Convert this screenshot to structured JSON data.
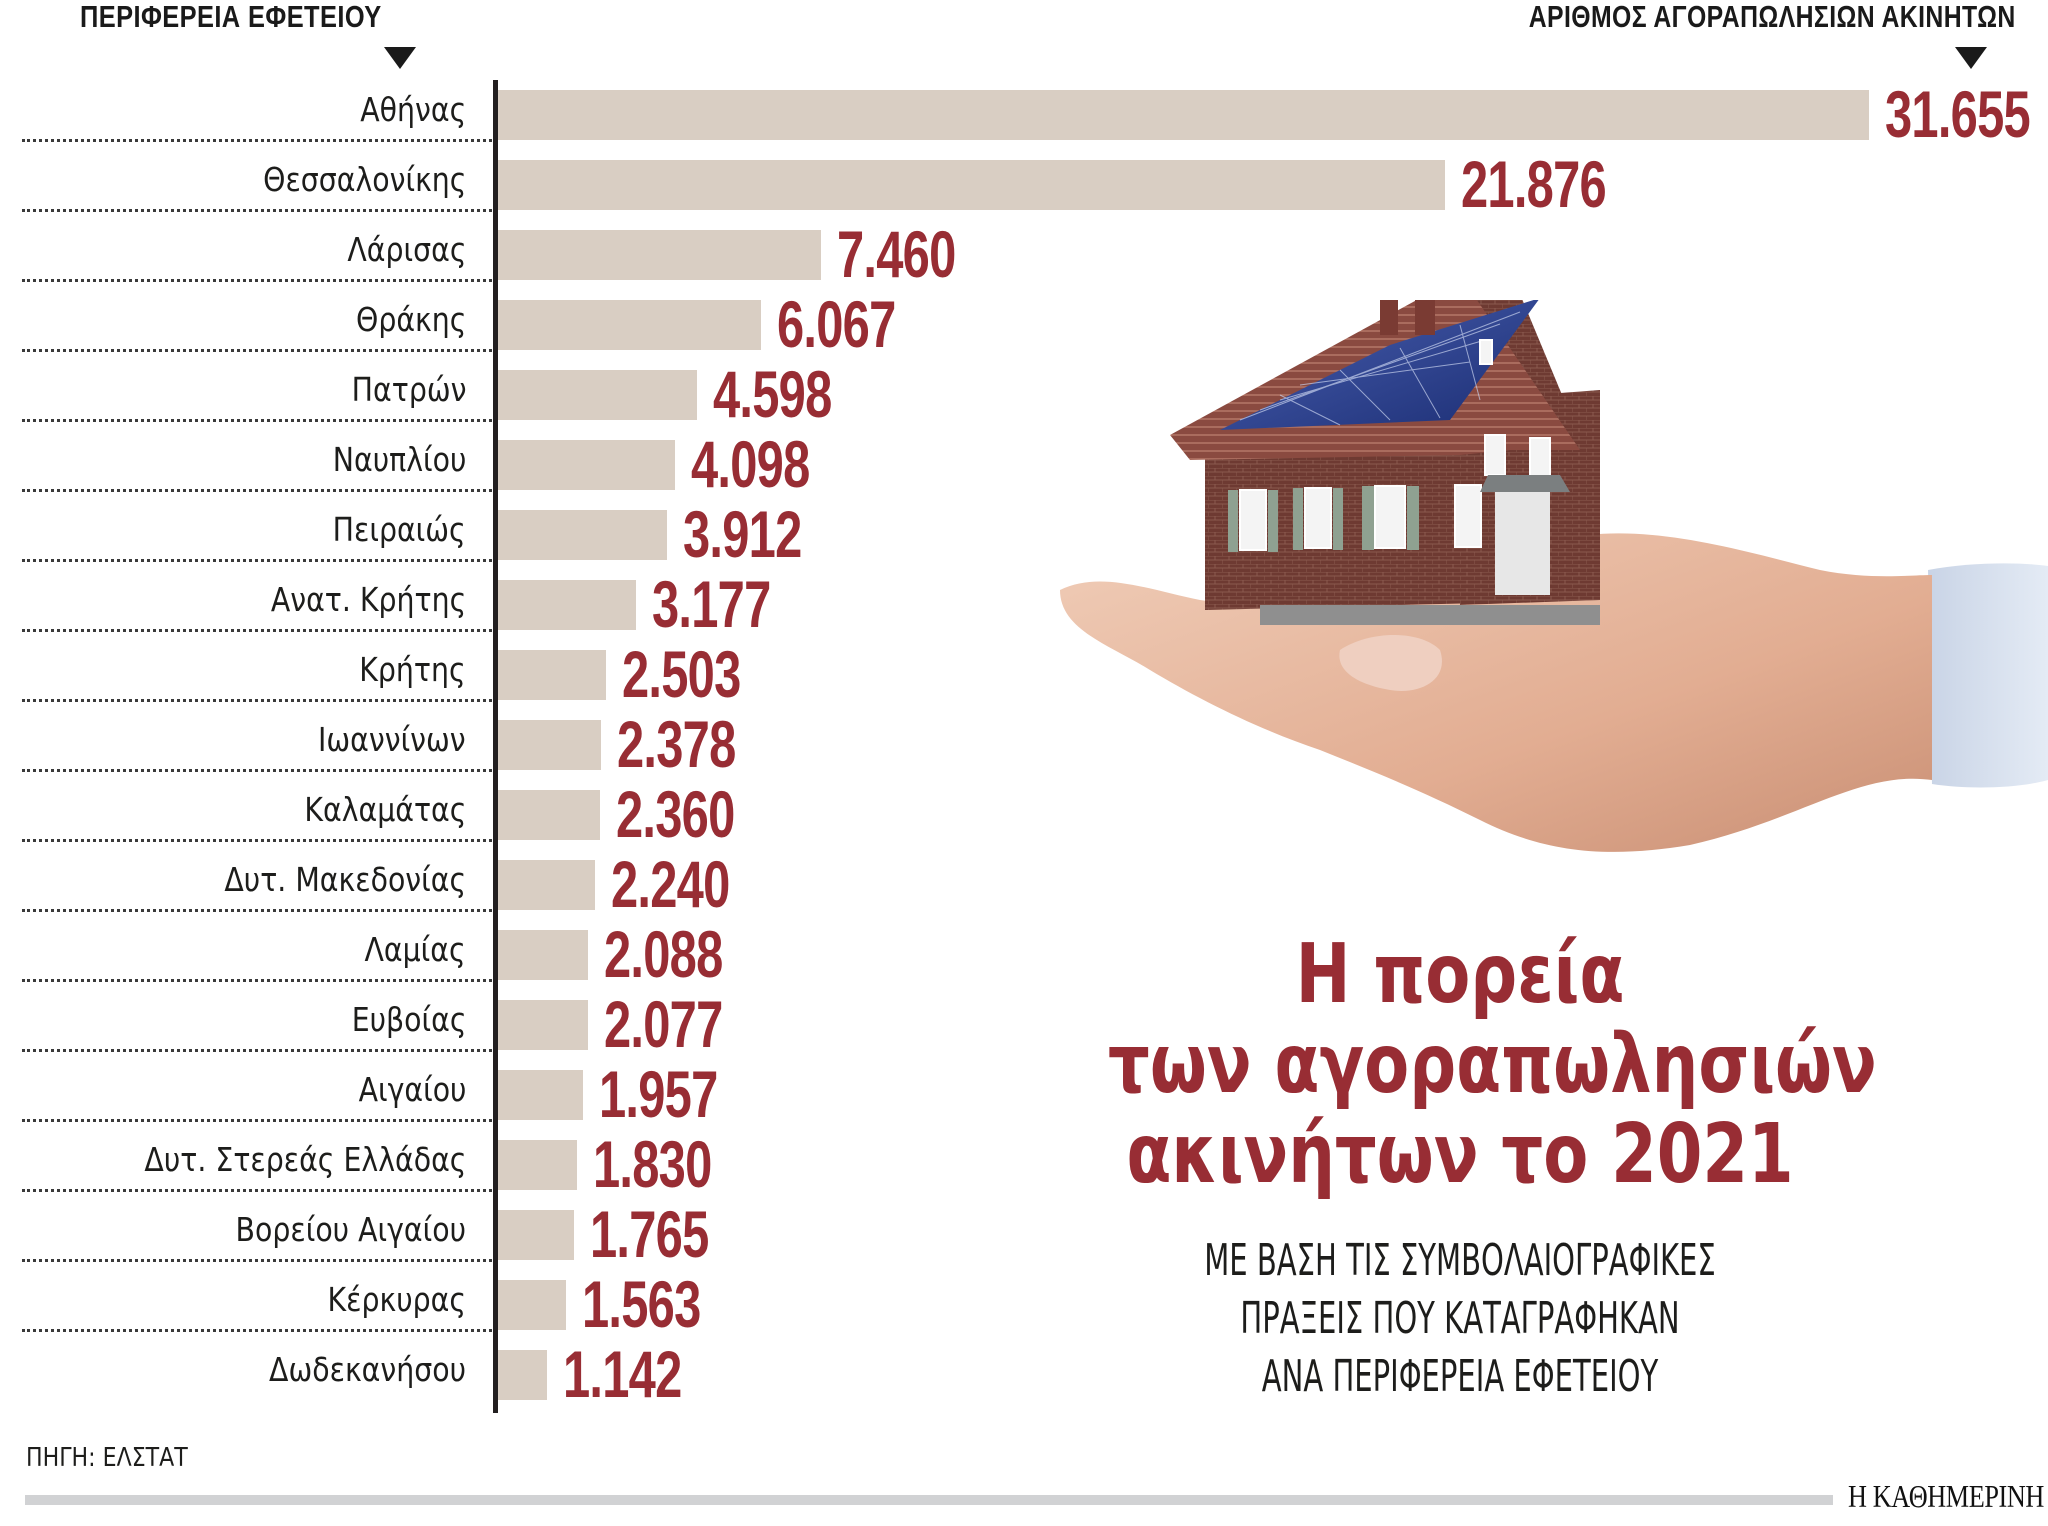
{
  "header": {
    "left_label": "ΠΕΡΙΦΕΡΕΙΑ ΕΦΕΤΕΙΟΥ",
    "right_label": "ΑΡΙΘΜΟΣ ΑΓΟΡΑΠΩΛΗΣΙΩΝ ΑΚΙΝΗΤΩΝ",
    "arrow_icon": "triangle-down-icon"
  },
  "rows": [
    {
      "label": "Αθήνας",
      "value_text": "31.655",
      "value": 31655
    },
    {
      "label": "Θεσσαλονίκης",
      "value_text": "21.876",
      "value": 21876
    },
    {
      "label": "Λάρισας",
      "value_text": "7.460",
      "value": 7460
    },
    {
      "label": "Θράκης",
      "value_text": "6.067",
      "value": 6067
    },
    {
      "label": "Πατρών",
      "value_text": "4.598",
      "value": 4598
    },
    {
      "label": "Ναυπλίου",
      "value_text": "4.098",
      "value": 4098
    },
    {
      "label": "Πειραιώς",
      "value_text": "3.912",
      "value": 3912
    },
    {
      "label": "Ανατ. Κρήτης",
      "value_text": "3.177",
      "value": 3177
    },
    {
      "label": "Κρήτης",
      "value_text": "2.503",
      "value": 2503
    },
    {
      "label": "Ιωαννίνων",
      "value_text": "2.378",
      "value": 2378
    },
    {
      "label": "Καλαμάτας",
      "value_text": "2.360",
      "value": 2360
    },
    {
      "label": "Δυτ. Μακεδονίας",
      "value_text": "2.240",
      "value": 2240
    },
    {
      "label": "Λαμίας",
      "value_text": "2.088",
      "value": 2088
    },
    {
      "label": "Ευβοίας",
      "value_text": "2.077",
      "value": 2077
    },
    {
      "label": "Αιγαίου",
      "value_text": "1.957",
      "value": 1957
    },
    {
      "label": "Δυτ. Στερεάς Ελλάδας",
      "value_text": "1.830",
      "value": 1830
    },
    {
      "label": "Βορείου Αιγαίου",
      "value_text": "1.765",
      "value": 1765
    },
    {
      "label": "Κέρκυρας",
      "value_text": "1.563",
      "value": 1563
    },
    {
      "label": "Δωδεκανήσου",
      "value_text": "1.142",
      "value": 1142
    }
  ],
  "title": {
    "line1": "Η πορεία",
    "line2": "των αγοραπωλησιών",
    "line3": "ακινήτων το 2021"
  },
  "subtitle": {
    "line1": "ΜΕ ΒΑΣΗ ΤΙΣ ΣΥΜΒΟΛΑΙΟΓΡΑΦΙΚΕΣ",
    "line2": "ΠΡΑΞΕΙΣ ΠΟΥ ΚΑΤΑΓΡΑΦΗΚΑΝ",
    "line3": "ΑΝΑ ΠΕΡΙΦΕΡΕΙΑ ΕΦΕΤΕΙΟΥ"
  },
  "source": "ΠΗΓΗ: ΕΛΣΤΑΤ",
  "logo": "Η ΚΑΘΗΜΕΡΙΝΗ",
  "illustration": "house-with-solar-panels-on-hand",
  "colors": {
    "bar": "#d9cec3",
    "value": "#982d34",
    "title": "#982d34",
    "axis": "#231f20",
    "footer_bar": "#d1d2d4"
  },
  "chart_data": {
    "type": "bar",
    "orientation": "horizontal",
    "title": "Η πορεία των αγοραπωλησιών ακινήτων το 2021",
    "subtitle": "ΜΕ ΒΑΣΗ ΤΙΣ ΣΥΜΒΟΛΑΙΟΓΡΑΦΙΚΕΣ ΠΡΑΞΕΙΣ ΠΟΥ ΚΑΤΑΓΡΑΦΗΚΑΝ ΑΝΑ ΠΕΡΙΦΕΡΕΙΑ ΕΦΕΤΕΙΟΥ",
    "xlabel": "ΑΡΙΘΜΟΣ ΑΓΟΡΑΠΩΛΗΣΙΩΝ ΑΚΙΝΗΤΩΝ",
    "ylabel": "ΠΕΡΙΦΕΡΕΙΑ ΕΦΕΤΕΙΟΥ",
    "categories": [
      "Αθήνας",
      "Θεσσαλονίκης",
      "Λάρισας",
      "Θράκης",
      "Πατρών",
      "Ναυπλίου",
      "Πειραιώς",
      "Ανατ. Κρήτης",
      "Κρήτης",
      "Ιωαννίνων",
      "Καλαμάτας",
      "Δυτ. Μακεδονίας",
      "Λαμίας",
      "Ευβοίας",
      "Αιγαίου",
      "Δυτ. Στερεάς Ελλάδας",
      "Βορείου Αιγαίου",
      "Κέρκυρας",
      "Δωδεκανήσου"
    ],
    "values": [
      31655,
      21876,
      7460,
      6067,
      4598,
      4098,
      3912,
      3177,
      2503,
      2378,
      2360,
      2240,
      2088,
      2077,
      1957,
      1830,
      1765,
      1563,
      1142
    ],
    "data_labels": true,
    "grid": false,
    "legend": null,
    "source": "ΠΗΓΗ: ΕΛΣΤΑΤ"
  }
}
